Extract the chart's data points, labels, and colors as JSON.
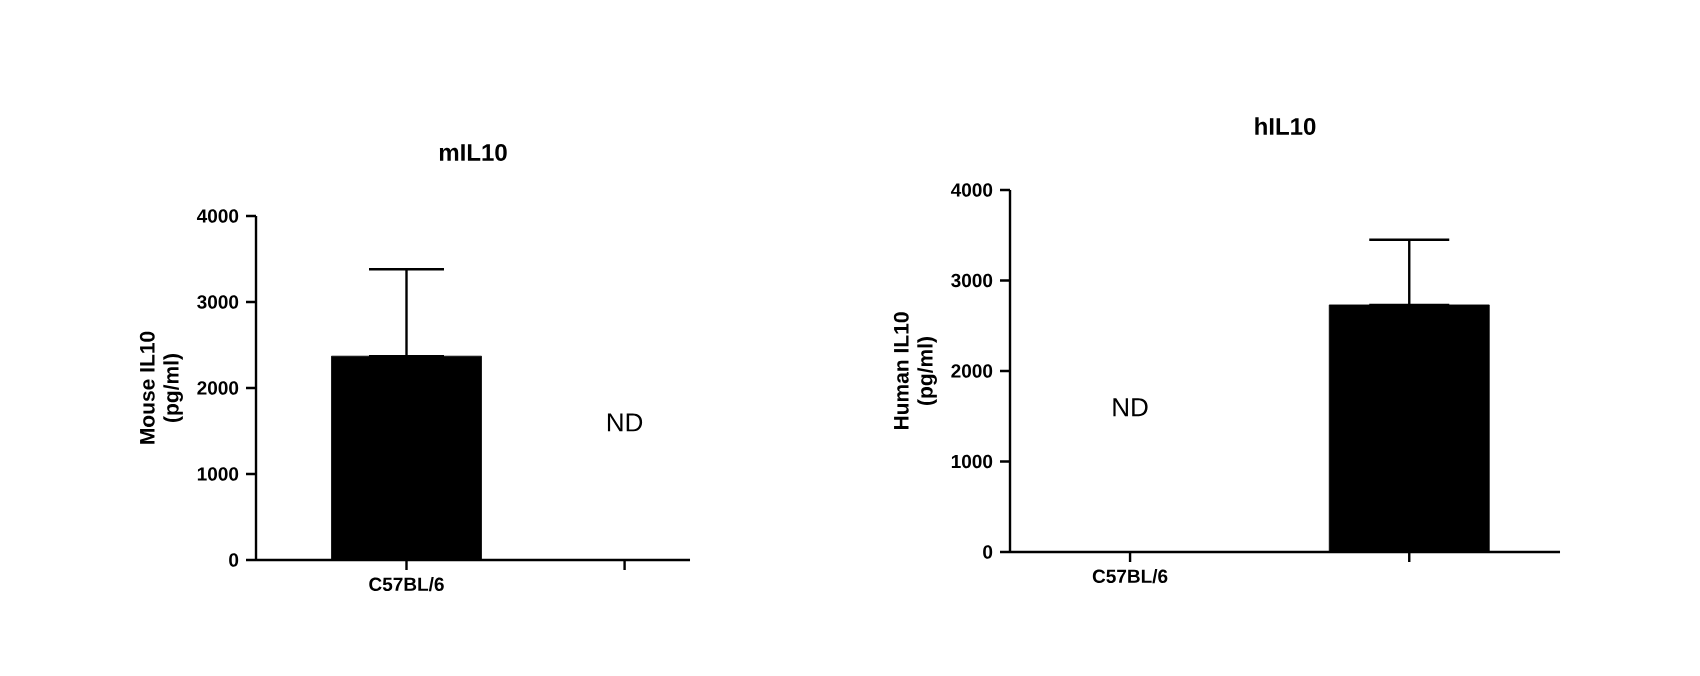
{
  "chart_data": [
    {
      "type": "bar",
      "title": "mIL10",
      "ylabel": "Mouse IL10\n(pg/ml)",
      "categories": [
        "C57BL/6",
        null
      ],
      "values": [
        2370,
        null
      ],
      "errors": [
        [
          2370,
          3380
        ],
        null
      ],
      "color": "#000000",
      "ylim": [
        0,
        4000
      ],
      "yticks": [
        0,
        1000,
        2000,
        3000,
        4000
      ],
      "annotations": [
        "ND"
      ]
    },
    {
      "type": "bar",
      "title": "hIL10",
      "ylabel": "Human IL10\n(pg/ml)",
      "categories": [
        "C57BL/6",
        null
      ],
      "values": [
        null,
        2730
      ],
      "errors": [
        null,
        [
          2730,
          3450
        ]
      ],
      "color": "#000000",
      "ylim": [
        0,
        4000
      ],
      "yticks": [
        0,
        1000,
        2000,
        3000,
        4000
      ],
      "annotations": [
        "ND"
      ]
    }
  ]
}
